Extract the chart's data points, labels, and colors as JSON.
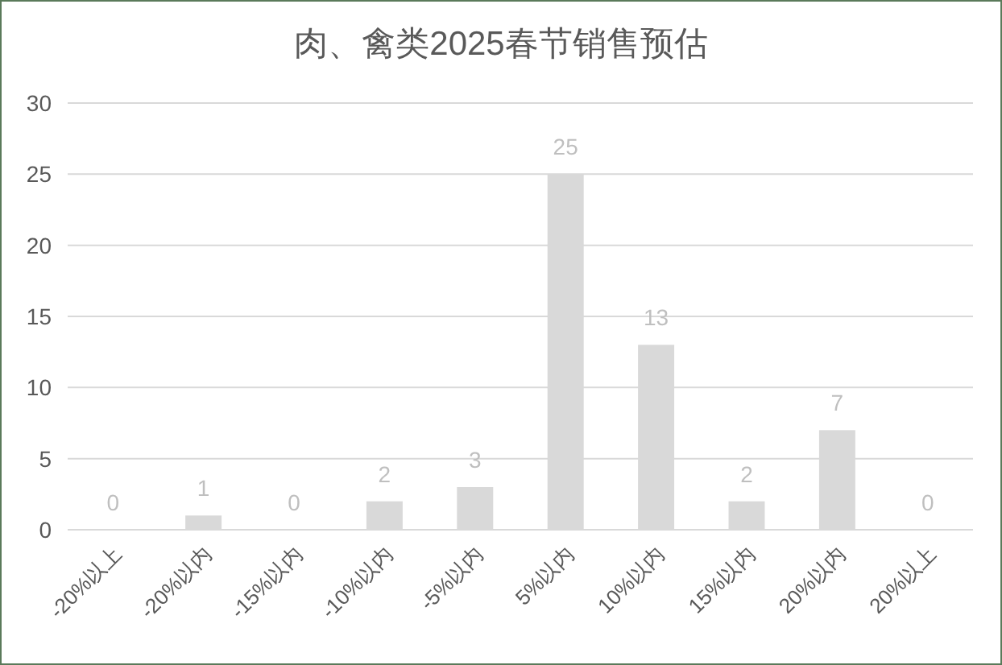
{
  "chart_data": {
    "type": "bar",
    "title": "肉、禽类2025春节销售预估",
    "categories": [
      "-20%以上",
      "-20%以内",
      "-15%以内",
      "-10%以内",
      "-5%以内",
      "5%以内",
      "10%以内",
      "15%以内",
      "20%以内",
      "20%以上"
    ],
    "values": [
      0,
      1,
      0,
      2,
      3,
      25,
      13,
      2,
      7,
      0
    ],
    "color": "#d9d9d9",
    "ylim": [
      0,
      30
    ],
    "yticks": [
      0,
      5,
      10,
      15,
      20,
      25,
      30
    ],
    "grid": "y",
    "data_labels": true
  }
}
